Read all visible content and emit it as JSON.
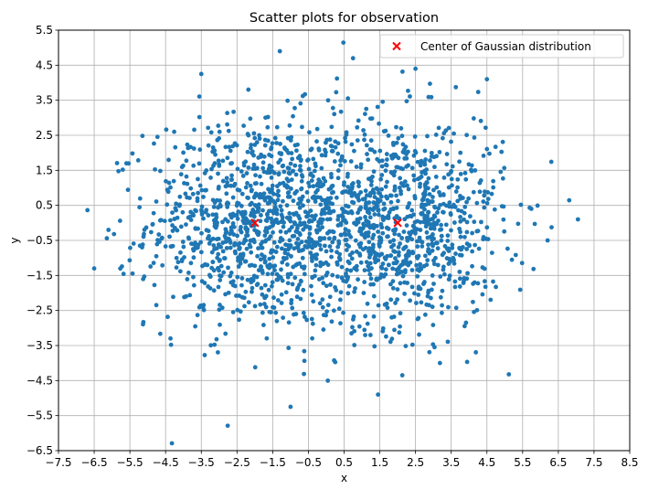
{
  "chart_data": {
    "type": "scatter",
    "title": "Scatter plots for observation",
    "xlabel": "x",
    "ylabel": "y",
    "xlim": [
      -7.5,
      8.5
    ],
    "ylim": [
      -6.5,
      5.5
    ],
    "xticks": [
      -7.5,
      -6.5,
      -5.5,
      -4.5,
      -3.5,
      -2.5,
      -1.5,
      -0.5,
      0.5,
      1.5,
      2.5,
      3.5,
      4.5,
      5.5,
      6.5,
      7.5,
      8.5
    ],
    "xtick_labels": [
      "−7.5",
      "−6.5",
      "−5.5",
      "−4.5",
      "−3.5",
      "−2.5",
      "−1.5",
      "−0.5",
      "0.5",
      "1.5",
      "2.5",
      "3.5",
      "4.5",
      "5.5",
      "6.5",
      "7.5",
      "8.5"
    ],
    "yticks": [
      -6.5,
      -5.5,
      -4.5,
      -3.5,
      -2.5,
      -1.5,
      -0.5,
      0.5,
      1.5,
      2.5,
      3.5,
      4.5,
      5.5
    ],
    "ytick_labels": [
      "−6.5",
      "−5.5",
      "−4.5",
      "−3.5",
      "−2.5",
      "−1.5",
      "−0.5",
      "0.5",
      "1.5",
      "2.5",
      "3.5",
      "4.5",
      "5.5"
    ],
    "grid": true,
    "legend_position": "top-right",
    "series": [
      {
        "kind": "observations",
        "color": "#1f77b4",
        "marker": "circle",
        "mixture": {
          "centers": [
            [
              -2,
              0
            ],
            [
              2,
              0
            ]
          ],
          "std": 1.5,
          "count_per_center": 1000,
          "seed": 12345
        },
        "notable_points": [
          [
            -6.5,
            -1.3
          ],
          [
            7.05,
            0.1
          ],
          [
            -1.3,
            4.9
          ],
          [
            0.75,
            4.7
          ],
          [
            2.5,
            4.4
          ],
          [
            -3.5,
            4.25
          ],
          [
            -1.0,
            -5.25
          ],
          [
            1.45,
            -4.9
          ],
          [
            4.5,
            4.1
          ],
          [
            6.2,
            -0.5
          ],
          [
            -6.1,
            -0.2
          ]
        ]
      },
      {
        "name": "Center of Gaussian distribution",
        "kind": "centers",
        "color": "#ff0000",
        "marker": "x",
        "points": [
          [
            -2,
            0
          ],
          [
            2,
            0
          ]
        ]
      }
    ]
  }
}
